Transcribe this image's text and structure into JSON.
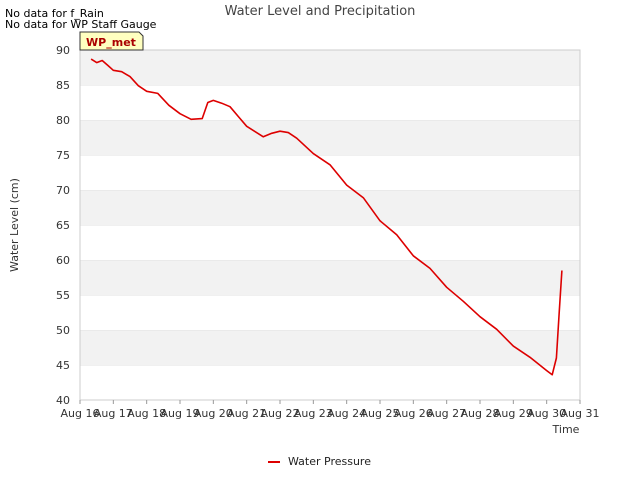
{
  "header": {
    "nodata_lines": [
      "No data for f_Rain",
      "No data for WP Staff Gauge"
    ],
    "badge": "WP_met"
  },
  "chart_data": {
    "type": "line",
    "title": "Water Level and Precipitation",
    "xlabel": "Time",
    "ylabel": "Water Level (cm)",
    "x_tick_labels": [
      "Aug 16",
      "Aug 17",
      "Aug 18",
      "Aug 19",
      "Aug 20",
      "Aug 21",
      "Aug 22",
      "Aug 23",
      "Aug 24",
      "Aug 25",
      "Aug 26",
      "Aug 27",
      "Aug 28",
      "Aug 29",
      "Aug 30",
      "Aug 31"
    ],
    "xlim": [
      "Aug 16",
      "Aug 31"
    ],
    "ylim": [
      40,
      90
    ],
    "y_ticks": [
      40,
      45,
      50,
      55,
      60,
      65,
      70,
      75,
      80,
      85,
      90
    ],
    "grid": "alternating horizontal bands",
    "legend_position": "bottom-center",
    "series": [
      {
        "name": "Water Pressure",
        "color": "#dd0000",
        "x": [
          "Aug 16 08:00",
          "Aug 16 12:00",
          "Aug 16 16:00",
          "Aug 16 20:00",
          "Aug 17 00:00",
          "Aug 17 06:00",
          "Aug 17 12:00",
          "Aug 17 18:00",
          "Aug 18 00:00",
          "Aug 18 08:00",
          "Aug 18 16:00",
          "Aug 19 00:00",
          "Aug 19 08:00",
          "Aug 19 16:00",
          "Aug 19 20:00",
          "Aug 20 00:00",
          "Aug 20 06:00",
          "Aug 20 12:00",
          "Aug 20 18:00",
          "Aug 21 00:00",
          "Aug 21 12:00",
          "Aug 21 18:00",
          "Aug 22 00:00",
          "Aug 22 06:00",
          "Aug 22 12:00",
          "Aug 23 00:00",
          "Aug 23 12:00",
          "Aug 24 00:00",
          "Aug 24 12:00",
          "Aug 25 00:00",
          "Aug 25 12:00",
          "Aug 26 00:00",
          "Aug 26 12:00",
          "Aug 27 00:00",
          "Aug 27 12:00",
          "Aug 28 00:00",
          "Aug 28 12:00",
          "Aug 29 00:00",
          "Aug 29 12:00",
          "Aug 30 00:00",
          "Aug 30 04:00",
          "Aug 30 07:00",
          "Aug 30 09:00",
          "Aug 30 11:00"
        ],
        "values": [
          88.7,
          88.2,
          88.5,
          87.8,
          87.1,
          86.9,
          86.2,
          84.9,
          84.1,
          83.8,
          82.1,
          80.9,
          80.1,
          80.2,
          82.5,
          82.8,
          82.4,
          81.9,
          80.5,
          79.1,
          77.6,
          78.1,
          78.4,
          78.2,
          77.4,
          75.2,
          73.6,
          70.7,
          68.9,
          65.6,
          63.6,
          60.6,
          58.8,
          56.1,
          54.1,
          51.9,
          50.1,
          47.7,
          46.1,
          44.2,
          43.6,
          46.0,
          52.5,
          58.5
        ]
      }
    ]
  }
}
